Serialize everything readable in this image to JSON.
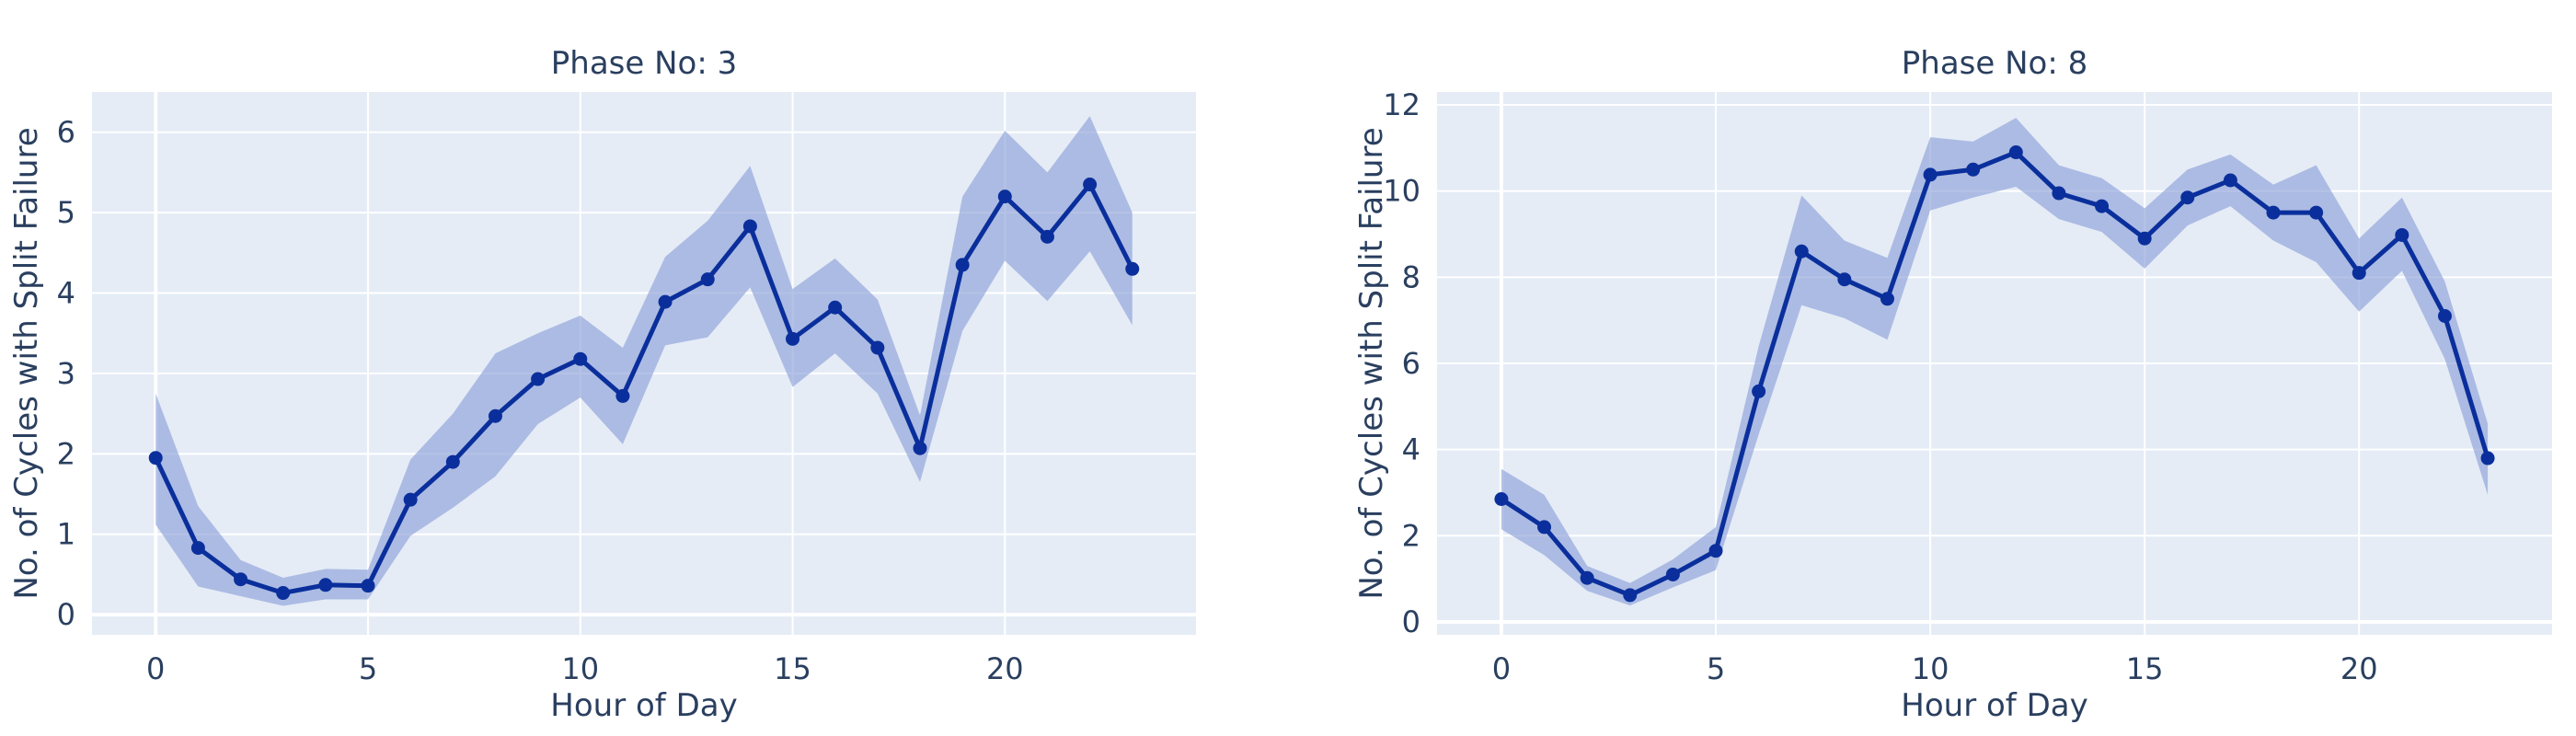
{
  "figure": {
    "series_color": "#0a2f9c",
    "band_color": "#8ea2d8",
    "plot_bg": "#e5ecf6",
    "grid_color": "#ffffff"
  },
  "chart_data": [
    {
      "type": "line",
      "title": "Phase No: 3",
      "xlabel": "Hour of Day",
      "ylabel": "No. of Cycles with Split Failure",
      "xlim": [
        -1.5,
        24.5
      ],
      "ylim": [
        -0.25,
        6.5
      ],
      "xticks": [
        0,
        5,
        10,
        15,
        20
      ],
      "yticks": [
        0,
        1,
        2,
        3,
        4,
        5,
        6
      ],
      "x": [
        0,
        1,
        2,
        3,
        4,
        5,
        6,
        7,
        8,
        9,
        10,
        11,
        12,
        13,
        14,
        15,
        16,
        17,
        18,
        19,
        20,
        21,
        22,
        23
      ],
      "series": [
        {
          "values": [
            1.95,
            0.83,
            0.44,
            0.27,
            0.37,
            0.36,
            1.43,
            1.9,
            2.47,
            2.93,
            3.18,
            2.72,
            3.89,
            4.17,
            4.83,
            3.43,
            3.82,
            3.32,
            2.07,
            4.35,
            5.2,
            4.7,
            5.35,
            4.3
          ],
          "upper": [
            2.75,
            1.35,
            0.68,
            0.46,
            0.57,
            0.56,
            1.93,
            2.5,
            3.25,
            3.5,
            3.72,
            3.32,
            4.45,
            4.9,
            5.58,
            4.05,
            4.43,
            3.92,
            2.48,
            5.2,
            6.02,
            5.5,
            6.2,
            5.0
          ],
          "lower": [
            1.12,
            0.35,
            0.23,
            0.11,
            0.19,
            0.19,
            0.98,
            1.33,
            1.72,
            2.37,
            2.7,
            2.12,
            3.35,
            3.45,
            4.07,
            2.83,
            3.25,
            2.75,
            1.65,
            3.53,
            4.4,
            3.9,
            4.52,
            3.6
          ]
        }
      ],
      "grid": true,
      "legend": "none"
    },
    {
      "type": "line",
      "title": "Phase No: 8",
      "xlabel": "Hour of Day",
      "ylabel": "No. of Cycles with Split Failure",
      "xlim": [
        -1.5,
        24.5
      ],
      "ylim": [
        -0.3,
        12.3
      ],
      "xticks": [
        0,
        5,
        10,
        15,
        20
      ],
      "yticks": [
        0,
        2,
        4,
        6,
        8,
        10,
        12
      ],
      "x": [
        0,
        1,
        2,
        3,
        4,
        5,
        6,
        7,
        8,
        9,
        10,
        11,
        12,
        13,
        14,
        15,
        16,
        17,
        18,
        19,
        20,
        21,
        22,
        23
      ],
      "series": [
        {
          "values": [
            2.85,
            2.2,
            1.02,
            0.62,
            1.1,
            1.65,
            5.35,
            8.6,
            7.95,
            7.5,
            10.38,
            10.5,
            10.9,
            9.95,
            9.65,
            8.9,
            9.85,
            10.25,
            9.5,
            9.5,
            8.1,
            8.98,
            7.1,
            3.8
          ],
          "upper": [
            3.55,
            2.95,
            1.3,
            0.9,
            1.45,
            2.2,
            6.4,
            9.9,
            8.85,
            8.45,
            11.25,
            11.15,
            11.7,
            10.6,
            10.3,
            9.6,
            10.5,
            10.85,
            10.15,
            10.6,
            8.9,
            9.85,
            7.9,
            4.6
          ],
          "lower": [
            2.15,
            1.55,
            0.72,
            0.38,
            0.8,
            1.2,
            4.35,
            7.35,
            7.05,
            6.55,
            9.55,
            9.85,
            10.1,
            9.35,
            9.05,
            8.2,
            9.2,
            9.65,
            8.85,
            8.35,
            7.2,
            8.15,
            6.1,
            2.95
          ]
        }
      ],
      "grid": true,
      "legend": "none"
    }
  ]
}
